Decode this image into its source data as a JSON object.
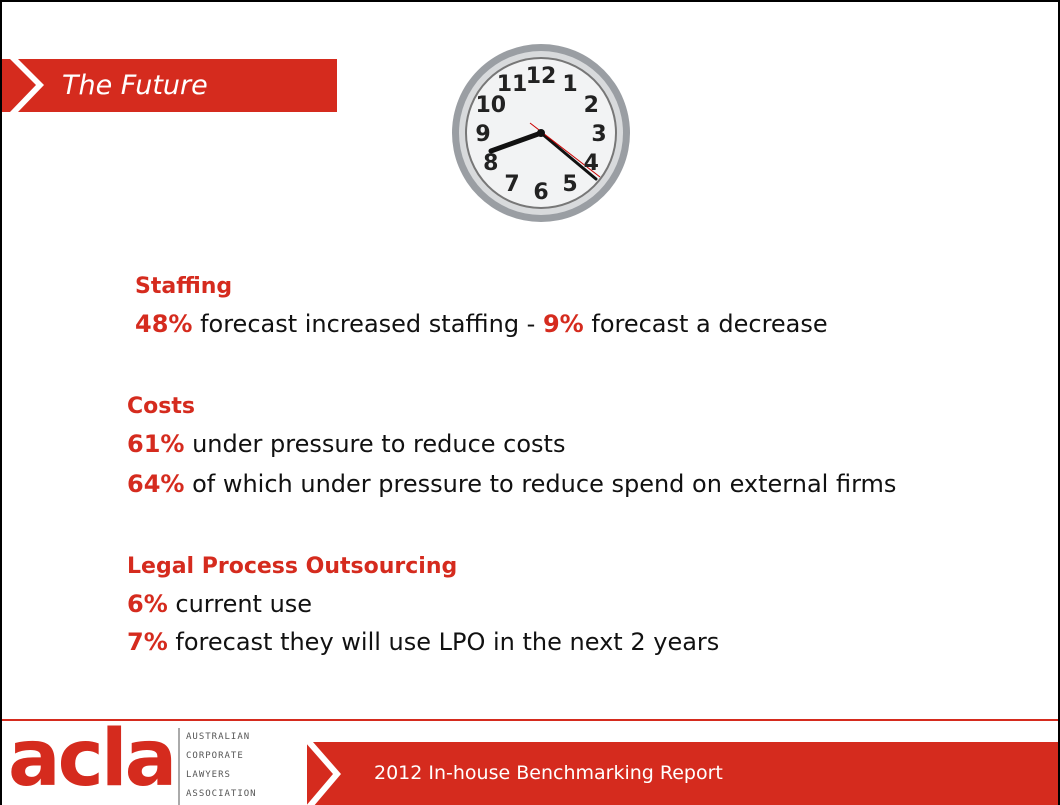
{
  "header": {
    "title": "The Future"
  },
  "clock": {
    "numbers": [
      "12",
      "1",
      "2",
      "3",
      "4",
      "5",
      "6",
      "7",
      "8",
      "9",
      "10",
      "11"
    ]
  },
  "sections": [
    {
      "heading": "Staffing",
      "lines": [
        [
          {
            "text": "48%",
            "strong": true
          },
          {
            "text": " forecast increased staffing - ",
            "strong": false
          },
          {
            "text": "9%",
            "strong": true
          },
          {
            "text": " forecast a decrease",
            "strong": false
          }
        ]
      ]
    },
    {
      "heading": "Costs",
      "lines": [
        [
          {
            "text": "61%",
            "strong": true
          },
          {
            "text": " under pressure to reduce costs",
            "strong": false
          }
        ],
        [
          {
            "text": "64%",
            "strong": true
          },
          {
            "text": " of which under pressure to reduce spend on external firms",
            "strong": false
          }
        ]
      ]
    },
    {
      "heading": "Legal Process Outsourcing",
      "lines": [
        [
          {
            "text": "6%",
            "strong": true
          },
          {
            "text": " current use",
            "strong": false
          }
        ],
        [
          {
            "text": "7%",
            "strong": true
          },
          {
            "text": " forecast they will use LPO in the next 2 years",
            "strong": false
          }
        ]
      ]
    }
  ],
  "footer": {
    "logo": "acla",
    "association": [
      "AUSTRALIAN",
      "CORPORATE",
      "LAWYERS",
      "ASSOCIATION"
    ],
    "report": "2012 In-house Benchmarking Report"
  }
}
